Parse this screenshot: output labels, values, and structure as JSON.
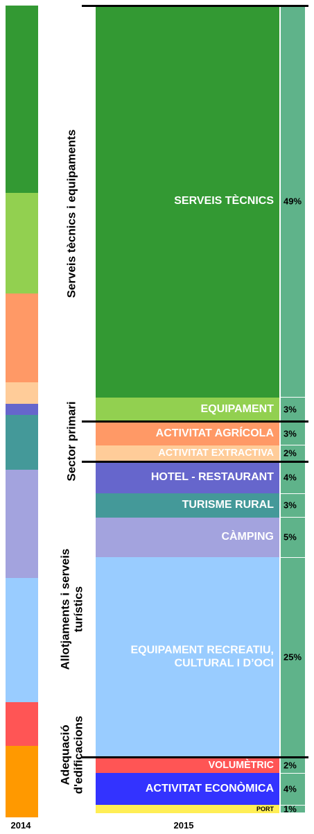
{
  "chart_data": {
    "type": "proportional-column",
    "x_labels": [
      "2014",
      "2015"
    ],
    "strip_color": "#5fb38a",
    "groups": [
      {
        "name": "Serveis tècnics i equipaments",
        "segments": [
          {
            "name": "SERVEIS TÈCNICS",
            "color": "#339933",
            "color_2014": "#339933",
            "value_2014": 23.1,
            "value": 49,
            "value_label": "49%"
          },
          {
            "name": "EQUIPAMENT",
            "color": "#92d050",
            "color_2014": "#92d050",
            "value_2014": 12.4,
            "value": 3,
            "value_label": "3%"
          }
        ]
      },
      {
        "name": "Sector primari",
        "segments": [
          {
            "name": "ACTIVITAT AGRÍCOLA",
            "color": "#ff9966",
            "color_2014": "#ff9966",
            "value_2014": 10.9,
            "value": 3,
            "value_label": "3%"
          },
          {
            "name": "ACTIVITAT EXTRACTIVA",
            "color": "#ffcc99",
            "color_2014": "#ffcc99",
            "value_2014": 2.7,
            "value": 2,
            "value_label": "2%"
          }
        ]
      },
      {
        "name": "Allotjaments i serveis turístics",
        "segments": [
          {
            "name": "HOTEL - RESTAURANT",
            "color": "#6666cc",
            "color_2014": "#6666cc",
            "value_2014": 1.3,
            "value": 4,
            "value_label": "4%"
          },
          {
            "name": "TURISME RURAL",
            "color": "#449999",
            "color_2014": "#449999",
            "value_2014": 6.8,
            "value": 3,
            "value_label": "3%"
          },
          {
            "name": "CÀMPING",
            "color": "#a3a3de",
            "color_2014": "#a3a3de",
            "value_2014": 13.3,
            "value": 5,
            "value_label": "5%"
          },
          {
            "name": "EQUIPAMENT RECREATIU, CULTURAL I D’OCI",
            "color": "#99ccff",
            "color_2014": "#99ccff",
            "value_2014": 15.3,
            "value": 25,
            "value_label": "25%"
          }
        ]
      },
      {
        "name": "Adequació d'edificacions",
        "segments": [
          {
            "name": "VOLUMÈTRIC",
            "color": "#ff5555",
            "color_2014": "#ff5555",
            "value_2014": 5.4,
            "value": 2,
            "value_label": "2%"
          },
          {
            "name": "ACTIVITAT ECONÒMICA",
            "color": "#3333ff",
            "color_2014": "#ff9900",
            "value_2014": 8.8,
            "value": 4,
            "value_label": "4%"
          },
          {
            "name": "PORT",
            "color": "#ffee55",
            "color_2014": null,
            "value_2014": null,
            "value": 1,
            "value_label": "1%",
            "label_color": "#000000"
          }
        ]
      }
    ]
  }
}
